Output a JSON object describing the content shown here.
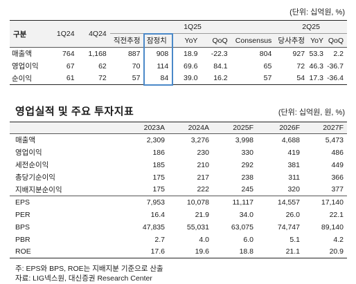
{
  "table1": {
    "unit": "(단위: 십억원, %)",
    "corner": "구분",
    "group_1q25": "1Q25",
    "group_2q25": "2Q25",
    "cols": [
      "1Q24",
      "4Q24",
      "직전추정",
      "잠정치",
      "YoY",
      "QoQ",
      "Consensus",
      "당사추정",
      "YoY",
      "QoQ"
    ],
    "rows": [
      {
        "label": "매출액",
        "values": [
          "764",
          "1,168",
          "887",
          "908",
          "18.9",
          "-22.3",
          "804",
          "927",
          "53.3",
          "2.2"
        ]
      },
      {
        "label": "영업이익",
        "values": [
          "67",
          "62",
          "70",
          "114",
          "69.6",
          "84.1",
          "65",
          "72",
          "46.3",
          "-36.7"
        ]
      },
      {
        "label": "순이익",
        "values": [
          "61",
          "72",
          "57",
          "84",
          "39.0",
          "16.2",
          "57",
          "54",
          "17.3",
          "-36.4"
        ]
      }
    ]
  },
  "table2": {
    "title": "영업실적 및 주요 투자지표",
    "unit": "(단위: 십억원, 원, %)",
    "cols": [
      "2023A",
      "2024A",
      "2025F",
      "2026F",
      "2027F"
    ],
    "rows": [
      {
        "label": "매출액",
        "values": [
          "2,309",
          "3,276",
          "3,998",
          "4,688",
          "5,473"
        ]
      },
      {
        "label": "영업이익",
        "values": [
          "186",
          "230",
          "330",
          "419",
          "486"
        ]
      },
      {
        "label": "세전순이익",
        "values": [
          "185",
          "210",
          "292",
          "381",
          "449"
        ]
      },
      {
        "label": "총당기순이익",
        "values": [
          "175",
          "217",
          "238",
          "311",
          "366"
        ]
      },
      {
        "label": "지배지분순이익",
        "values": [
          "175",
          "222",
          "245",
          "320",
          "377"
        ]
      },
      {
        "label": "EPS",
        "values": [
          "7,953",
          "10,078",
          "11,117",
          "14,557",
          "17,140"
        ]
      },
      {
        "label": "PER",
        "values": [
          "16.4",
          "21.9",
          "34.0",
          "26.0",
          "22.1"
        ]
      },
      {
        "label": "BPS",
        "values": [
          "47,835",
          "55,031",
          "63,075",
          "74,747",
          "89,140"
        ]
      },
      {
        "label": "PBR",
        "values": [
          "2.7",
          "4.0",
          "6.0",
          "5.1",
          "4.2"
        ]
      },
      {
        "label": "ROE",
        "values": [
          "17.6",
          "19.6",
          "18.8",
          "21.1",
          "20.9"
        ]
      }
    ]
  },
  "notes": {
    "note": "주: EPS와 BPS, ROE는 지배지분 기준으로 산출",
    "source": "자료: LIG넥스원, 대신증권 Research Center"
  },
  "colors": {
    "highlight_box": "#4a88c8",
    "header_bg": "#f2f2f2"
  }
}
